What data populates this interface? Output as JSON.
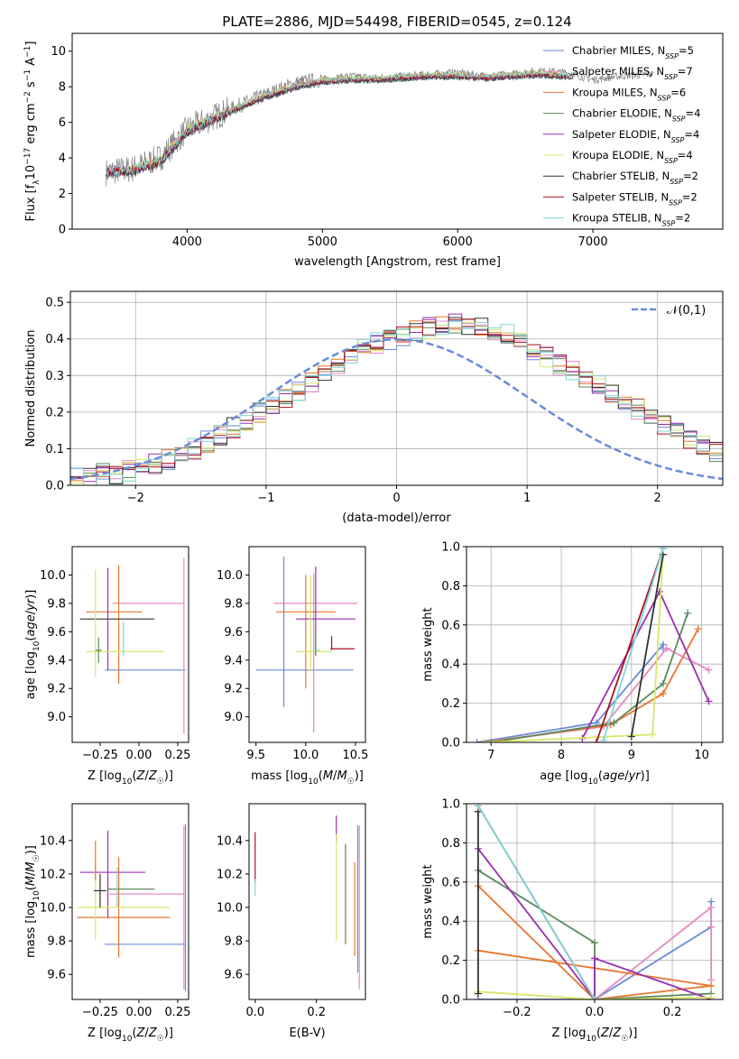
{
  "page": {
    "title": "PLATE=2886, MJD=54498, FIBERID=0545, z=0.124"
  },
  "legend_entries": [
    {
      "label": "Chabrier MILES, N_SSP=5",
      "color": "#6a8bd8"
    },
    {
      "label": "Salpeter MILES, N_SSP=7",
      "color": "#e58bc1"
    },
    {
      "label": "Kroupa MILES, N_SSP=6",
      "color": "#e8772e"
    },
    {
      "label": "Chabrier ELODIE, N_SSP=4",
      "color": "#5a8a5c"
    },
    {
      "label": "Salpeter ELODIE, N_SSP=4",
      "color": "#9a30b0"
    },
    {
      "label": "Kroupa ELODIE, N_SSP=4",
      "color": "#d6e86a"
    },
    {
      "label": "Chabrier STELIB, N_SSP=2",
      "color": "#333333"
    },
    {
      "label": "Salpeter STELIB, N_SSP=2",
      "color": "#b01020"
    },
    {
      "label": "Kroupa STELIB, N_SSP=2",
      "color": "#7fd6d6"
    }
  ],
  "chart_data": [
    {
      "type": "line",
      "panel": "spectrum",
      "xlabel": "wavelength [Angstrom, rest frame]",
      "ylabel": "Flux [f_λ 10^-17 erg cm^-2 s^-1 A^-1]",
      "xlim": [
        3150,
        7960
      ],
      "ylim": [
        0,
        11
      ],
      "xticks": [
        4000,
        5000,
        6000,
        7000
      ],
      "yticks": [
        0,
        2,
        4,
        6,
        8,
        10
      ],
      "data_color": "#808080",
      "data_anchors": [
        [
          3400,
          3.2
        ],
        [
          3600,
          3.4
        ],
        [
          3800,
          4.0
        ],
        [
          4000,
          5.6
        ],
        [
          4200,
          6.3
        ],
        [
          4400,
          7.0
        ],
        [
          4600,
          7.6
        ],
        [
          4800,
          8.2
        ],
        [
          5000,
          8.4
        ],
        [
          5200,
          8.6
        ],
        [
          5400,
          8.5
        ],
        [
          5600,
          8.6
        ],
        [
          5800,
          8.7
        ],
        [
          6000,
          8.8
        ],
        [
          6200,
          8.6
        ],
        [
          6400,
          8.7
        ],
        [
          6600,
          8.9
        ],
        [
          6800,
          8.8
        ],
        [
          7000,
          8.4
        ],
        [
          7200,
          8.6
        ],
        [
          7400,
          8.7
        ]
      ],
      "model_anchors": [
        [
          3400,
          3.2
        ],
        [
          3600,
          3.3
        ],
        [
          3800,
          3.8
        ],
        [
          4000,
          5.5
        ],
        [
          4200,
          6.2
        ],
        [
          4400,
          6.9
        ],
        [
          4600,
          7.5
        ],
        [
          4800,
          8.0
        ],
        [
          5000,
          8.3
        ],
        [
          5200,
          8.4
        ],
        [
          5400,
          8.4
        ],
        [
          5600,
          8.5
        ],
        [
          5800,
          8.6
        ],
        [
          6000,
          8.6
        ],
        [
          6200,
          8.5
        ],
        [
          6400,
          8.6
        ],
        [
          6600,
          8.7
        ],
        [
          6800,
          8.6
        ]
      ],
      "grid": false,
      "legend": "upper-right"
    },
    {
      "type": "step",
      "panel": "residuals",
      "xlabel": "(data-model)/error",
      "ylabel": "Normed distribution",
      "xlim": [
        -2.5,
        2.5
      ],
      "ylim": [
        0,
        0.53
      ],
      "xticks": [
        -2,
        -1,
        0,
        1,
        2
      ],
      "xtick_labels": [
        "−2",
        "−1",
        "0",
        "1",
        "2"
      ],
      "yticks": [
        0.0,
        0.1,
        0.2,
        0.3,
        0.4,
        0.5
      ],
      "ytick_labels": [
        "0.0",
        "0.1",
        "0.2",
        "0.3",
        "0.4",
        "0.5"
      ],
      "bin_width": 0.1,
      "series_base": [
        0.02,
        0.02,
        0.03,
        0.03,
        0.04,
        0.05,
        0.06,
        0.07,
        0.08,
        0.1,
        0.12,
        0.14,
        0.16,
        0.18,
        0.2,
        0.22,
        0.24,
        0.26,
        0.28,
        0.31,
        0.33,
        0.35,
        0.37,
        0.39,
        0.4,
        0.41,
        0.42,
        0.43,
        0.44,
        0.44,
        0.44,
        0.43,
        0.42,
        0.41,
        0.39,
        0.37,
        0.35,
        0.33,
        0.31,
        0.29,
        0.27,
        0.25,
        0.23,
        0.21,
        0.19,
        0.17,
        0.15,
        0.13,
        0.11,
        0.09
      ],
      "gaussian_label": "𝒩(0,1)",
      "gaussian_color": "#6a8bd8",
      "grid": true,
      "legend": "upper-right"
    },
    {
      "type": "errorbar",
      "panel": "age_vs_Z",
      "xlabel": "Z [log10(Z/Z☉)]",
      "ylabel": "age  [log10(age/yr)]",
      "xlim": [
        -0.43,
        0.32
      ],
      "ylim": [
        8.82,
        10.2
      ],
      "xticks": [
        -0.25,
        0.0,
        0.25
      ],
      "xtick_labels": [
        "−0.25",
        "0.00",
        "0.25"
      ],
      "yticks": [
        9.0,
        9.2,
        9.4,
        9.6,
        9.8,
        10.0
      ],
      "ytick_labels": [
        "9.0",
        "9.2",
        "9.4",
        "9.6",
        "9.8",
        "10.0"
      ],
      "points": [
        {
          "x": 0.04,
          "xerr": 0.26,
          "y": 9.33,
          "yerr": 0.0,
          "c": "#6a8bd8"
        },
        {
          "x": 0.06,
          "xerr": 0.23,
          "y": 9.8,
          "yerr": 0.0,
          "c": "#e58bc1"
        },
        {
          "x": 0.29,
          "xerr": 0.0,
          "y": 9.5,
          "yerr": 0.62,
          "c": "#e58bc1"
        },
        {
          "x": -0.13,
          "xerr": 0.0,
          "y": 9.65,
          "yerr": 0.42,
          "c": "#e8772e"
        },
        {
          "x": -0.16,
          "xerr": 0.18,
          "y": 9.74,
          "yerr": 0.0,
          "c": "#e8772e"
        },
        {
          "x": -0.14,
          "xerr": 0.24,
          "y": 9.69,
          "yerr": 0.0,
          "c": "#333333"
        },
        {
          "x": -0.2,
          "xerr": 0.0,
          "y": 9.69,
          "yerr": 0.36,
          "c": "#9a30b0"
        },
        {
          "x": -0.28,
          "xerr": 0.0,
          "y": 9.66,
          "yerr": 0.38,
          "c": "#d6e86a"
        },
        {
          "x": -0.09,
          "xerr": 0.25,
          "y": 9.46,
          "yerr": 0.0,
          "c": "#d6e86a"
        },
        {
          "x": -0.26,
          "xerr": 0.02,
          "y": 9.47,
          "yerr": 0.09,
          "c": "#5a8a5c"
        },
        {
          "x": -0.1,
          "xerr": 0.0,
          "y": 9.55,
          "yerr": 0.12,
          "c": "#7fd6d6"
        }
      ]
    },
    {
      "type": "errorbar",
      "panel": "age_vs_mass",
      "xlabel": "mass [log10(M/M☉)]",
      "ylabel": "",
      "xlim": [
        9.43,
        10.6
      ],
      "ylim": [
        8.82,
        10.2
      ],
      "xticks": [
        9.5,
        10.0,
        10.5
      ],
      "xtick_labels": [
        "9.5",
        "10.0",
        "10.5"
      ],
      "yticks": [
        9.0,
        9.2,
        9.4,
        9.6,
        9.8,
        10.0
      ],
      "ytick_labels": [
        "9.0",
        "9.2",
        "9.4",
        "9.6",
        "9.8",
        "10.0"
      ],
      "points": [
        {
          "x": 9.78,
          "xerr": 0.0,
          "y": 9.6,
          "yerr": 0.53,
          "c": "#6a8bd8"
        },
        {
          "x": 9.99,
          "xerr": 0.49,
          "y": 9.33,
          "yerr": 0.0,
          "c": "#6a8bd8"
        },
        {
          "x": 10.1,
          "xerr": 0.42,
          "y": 9.8,
          "yerr": 0.0,
          "c": "#e58bc1"
        },
        {
          "x": 10.08,
          "xerr": 0.0,
          "y": 9.45,
          "yerr": 0.56,
          "c": "#e58bc1"
        },
        {
          "x": 10.0,
          "xerr": 0.3,
          "y": 9.74,
          "yerr": 0.0,
          "c": "#e8772e"
        },
        {
          "x": 10.0,
          "xerr": 0.0,
          "y": 9.6,
          "yerr": 0.4,
          "c": "#e8772e"
        },
        {
          "x": 10.2,
          "xerr": 0.3,
          "y": 9.69,
          "yerr": 0.0,
          "c": "#9a30b0"
        },
        {
          "x": 10.1,
          "xerr": 0.0,
          "y": 9.75,
          "yerr": 0.31,
          "c": "#9a30b0"
        },
        {
          "x": 10.05,
          "xerr": 0.0,
          "y": 9.66,
          "yerr": 0.34,
          "c": "#d6e86a"
        },
        {
          "x": 10.08,
          "xerr": 0.18,
          "y": 9.46,
          "yerr": 0.0,
          "c": "#d6e86a"
        },
        {
          "x": 10.1,
          "xerr": 0.0,
          "y": 9.52,
          "yerr": 0.09,
          "c": "#5a8a5c"
        },
        {
          "x": 10.12,
          "xerr": 0.02,
          "y": 9.47,
          "yerr": 0.0,
          "c": "#7fd6d6"
        },
        {
          "x": 10.37,
          "xerr": 0.12,
          "y": 9.48,
          "yerr": 0.0,
          "c": "#b01020"
        },
        {
          "x": 10.26,
          "xerr": 0.0,
          "y": 9.52,
          "yerr": 0.05,
          "c": "#b01020"
        }
      ]
    },
    {
      "type": "line",
      "panel": "mass_weight_vs_age",
      "xlabel": "age  [log10(age/yr)]",
      "ylabel": "mass weight",
      "xlim": [
        6.65,
        10.3
      ],
      "ylim": [
        0,
        1
      ],
      "xticks": [
        7,
        8,
        9,
        10
      ],
      "yticks": [
        0.0,
        0.2,
        0.4,
        0.6,
        0.8,
        1.0
      ],
      "ytick_labels": [
        "0.0",
        "0.2",
        "0.4",
        "0.6",
        "0.8",
        "1.0"
      ],
      "grid": true,
      "series": [
        {
          "c": "#6a8bd8",
          "x": [
            6.8,
            8.5,
            9.45,
            9.45
          ],
          "y": [
            0.0,
            0.1,
            0.5,
            0.48
          ]
        },
        {
          "c": "#e58bc1",
          "x": [
            6.9,
            8.6,
            9.5,
            10.1
          ],
          "y": [
            0.0,
            0.08,
            0.48,
            0.37
          ]
        },
        {
          "c": "#e8772e",
          "x": [
            6.9,
            8.7,
            9.45,
            9.95
          ],
          "y": [
            0.0,
            0.09,
            0.25,
            0.58
          ]
        },
        {
          "c": "#5a8a5c",
          "x": [
            7.0,
            8.75,
            9.45,
            9.8
          ],
          "y": [
            0.0,
            0.1,
            0.3,
            0.66
          ]
        },
        {
          "c": "#9a30b0",
          "x": [
            8.3,
            9.4,
            10.1
          ],
          "y": [
            0.02,
            0.77,
            0.21
          ]
        },
        {
          "c": "#d6e86a",
          "x": [
            6.9,
            9.3,
            9.45
          ],
          "y": [
            0.0,
            0.04,
            0.96
          ]
        },
        {
          "c": "#333333",
          "x": [
            9.0,
            9.45
          ],
          "y": [
            0.03,
            0.96
          ]
        },
        {
          "c": "#b01020",
          "x": [
            8.5,
            9.45
          ],
          "y": [
            0.0,
            0.99
          ]
        },
        {
          "c": "#7fd6d6",
          "x": [
            8.6,
            9.45
          ],
          "y": [
            0.01,
            0.99
          ]
        }
      ]
    },
    {
      "type": "errorbar",
      "panel": "mass_vs_Z",
      "xlabel": "Z [log10(Z/Z☉)]",
      "ylabel": "mass [log10(M/M☉)]",
      "xlim": [
        -0.43,
        0.32
      ],
      "ylim": [
        9.45,
        10.62
      ],
      "xticks": [
        -0.25,
        0.0,
        0.25
      ],
      "xtick_labels": [
        "−0.25",
        "0.00",
        "0.25"
      ],
      "yticks": [
        9.6,
        9.8,
        10.0,
        10.2,
        10.4
      ],
      "ytick_labels": [
        "9.6",
        "9.8",
        "10.0",
        "10.2",
        "10.4"
      ],
      "points": [
        {
          "x": 0.04,
          "xerr": 0.26,
          "y": 9.78,
          "yerr": 0.0,
          "c": "#6a8bd8"
        },
        {
          "x": 0.3,
          "xerr": 0.0,
          "y": 10.0,
          "yerr": 0.5,
          "c": "#6a8bd8"
        },
        {
          "x": 0.05,
          "xerr": 0.24,
          "y": 10.08,
          "yerr": 0.0,
          "c": "#e58bc1"
        },
        {
          "x": 0.29,
          "xerr": 0.0,
          "y": 10.0,
          "yerr": 0.49,
          "c": "#e58bc1"
        },
        {
          "x": -0.13,
          "xerr": 0.0,
          "y": 10.0,
          "yerr": 0.3,
          "c": "#e8772e"
        },
        {
          "x": -0.1,
          "xerr": 0.3,
          "y": 9.94,
          "yerr": 0.0,
          "c": "#e8772e"
        },
        {
          "x": -0.2,
          "xerr": 0.0,
          "y": 10.2,
          "yerr": 0.26,
          "c": "#9a30b0"
        },
        {
          "x": -0.17,
          "xerr": 0.21,
          "y": 10.21,
          "yerr": 0.0,
          "c": "#9a30b0"
        },
        {
          "x": -0.28,
          "xerr": 0.0,
          "y": 10.05,
          "yerr": 0.24,
          "c": "#d6e86a"
        },
        {
          "x": -0.1,
          "xerr": 0.3,
          "y": 10.0,
          "yerr": 0.0,
          "c": "#d6e86a"
        },
        {
          "x": -0.05,
          "xerr": 0.15,
          "y": 10.11,
          "yerr": 0.0,
          "c": "#5a8a5c"
        },
        {
          "x": -0.25,
          "xerr": 0.04,
          "y": 10.1,
          "yerr": 0.1,
          "c": "#333333"
        },
        {
          "x": -0.28,
          "xerr": 0.0,
          "y": 10.28,
          "yerr": 0.12,
          "c": "#e8772e"
        },
        {
          "x": -0.14,
          "xerr": 0.0,
          "y": 10.12,
          "yerr": 0.12,
          "c": "#7fd6d6"
        }
      ]
    },
    {
      "type": "errorbar",
      "panel": "mass_vs_ebv",
      "xlabel": "E(B-V)",
      "ylabel": "",
      "xlim": [
        -0.02,
        0.36
      ],
      "ylim": [
        9.45,
        10.62
      ],
      "xticks": [
        0.0,
        0.2
      ],
      "xtick_labels": [
        "0.0",
        "0.2"
      ],
      "yticks": [
        9.6,
        9.8,
        10.0,
        10.2,
        10.4
      ],
      "ytick_labels": [
        "9.6",
        "9.8",
        "10.0",
        "10.2",
        "10.4"
      ],
      "points": [
        {
          "x": 0.0,
          "xerr": 0.0,
          "y": 10.3,
          "yerr": 0.15,
          "c": "#b01020"
        },
        {
          "x": 0.0,
          "xerr": 0.0,
          "y": 10.12,
          "yerr": 0.05,
          "c": "#7fd6d6"
        },
        {
          "x": 0.265,
          "xerr": 0.0,
          "y": 10.47,
          "yerr": 0.08,
          "c": "#9a30b0"
        },
        {
          "x": 0.265,
          "xerr": 0.0,
          "y": 10.12,
          "yerr": 0.32,
          "c": "#d6e86a"
        },
        {
          "x": 0.295,
          "xerr": 0.0,
          "y": 10.08,
          "yerr": 0.3,
          "c": "#5a8a5c"
        },
        {
          "x": 0.325,
          "xerr": 0.0,
          "y": 9.99,
          "yerr": 0.28,
          "c": "#e8772e"
        },
        {
          "x": 0.335,
          "xerr": 0.0,
          "y": 10.05,
          "yerr": 0.44,
          "c": "#6a8bd8"
        },
        {
          "x": 0.34,
          "xerr": 0.0,
          "y": 10.0,
          "yerr": 0.49,
          "c": "#e58bc1"
        }
      ]
    },
    {
      "type": "line",
      "panel": "mass_weight_vs_Z",
      "xlabel": "Z [log10(Z/Z☉)]",
      "ylabel": "mass weight",
      "xlim": [
        -0.33,
        0.33
      ],
      "ylim": [
        0,
        1
      ],
      "xticks": [
        -0.2,
        0.0,
        0.2
      ],
      "xtick_labels": [
        "−0.2",
        "0.0",
        "0.2"
      ],
      "yticks": [
        0.0,
        0.2,
        0.4,
        0.6,
        0.8,
        1.0
      ],
      "ytick_labels": [
        "0.0",
        "0.2",
        "0.4",
        "0.6",
        "0.8",
        "1.0"
      ],
      "grid": true,
      "series": [
        {
          "c": "#6a8bd8",
          "x": [
            -0.3,
            0.0,
            0.3,
            0.3
          ],
          "y": [
            0.0,
            0.0,
            0.37,
            0.5
          ]
        },
        {
          "c": "#e58bc1",
          "x": [
            0.0,
            0.3,
            0.3,
            0.3
          ],
          "y": [
            0.0,
            0.47,
            0.1,
            0.37
          ]
        },
        {
          "c": "#e8772e",
          "x": [
            -0.3,
            0.0,
            0.3,
            -0.3
          ],
          "y": [
            0.58,
            0.0,
            0.07,
            0.25
          ]
        },
        {
          "c": "#5a8a5c",
          "x": [
            -0.3,
            0.0,
            0.0,
            0.3
          ],
          "y": [
            0.66,
            0.29,
            0.0,
            0.03
          ]
        },
        {
          "c": "#9a30b0",
          "x": [
            -0.3,
            0.0,
            0.0,
            0.3
          ],
          "y": [
            0.77,
            0.0,
            0.21,
            0.0
          ]
        },
        {
          "c": "#d6e86a",
          "x": [
            -0.3,
            0.0,
            0.3
          ],
          "y": [
            0.04,
            0.0,
            0.01
          ]
        },
        {
          "c": "#333333",
          "x": [
            -0.3,
            -0.3
          ],
          "y": [
            0.03,
            0.96
          ]
        },
        {
          "c": "#b01020",
          "x": [
            -0.3,
            0.0
          ],
          "y": [
            0.99,
            0.0
          ]
        },
        {
          "c": "#7fd6d6",
          "x": [
            -0.3,
            0.0
          ],
          "y": [
            0.99,
            0.0
          ]
        }
      ]
    }
  ]
}
